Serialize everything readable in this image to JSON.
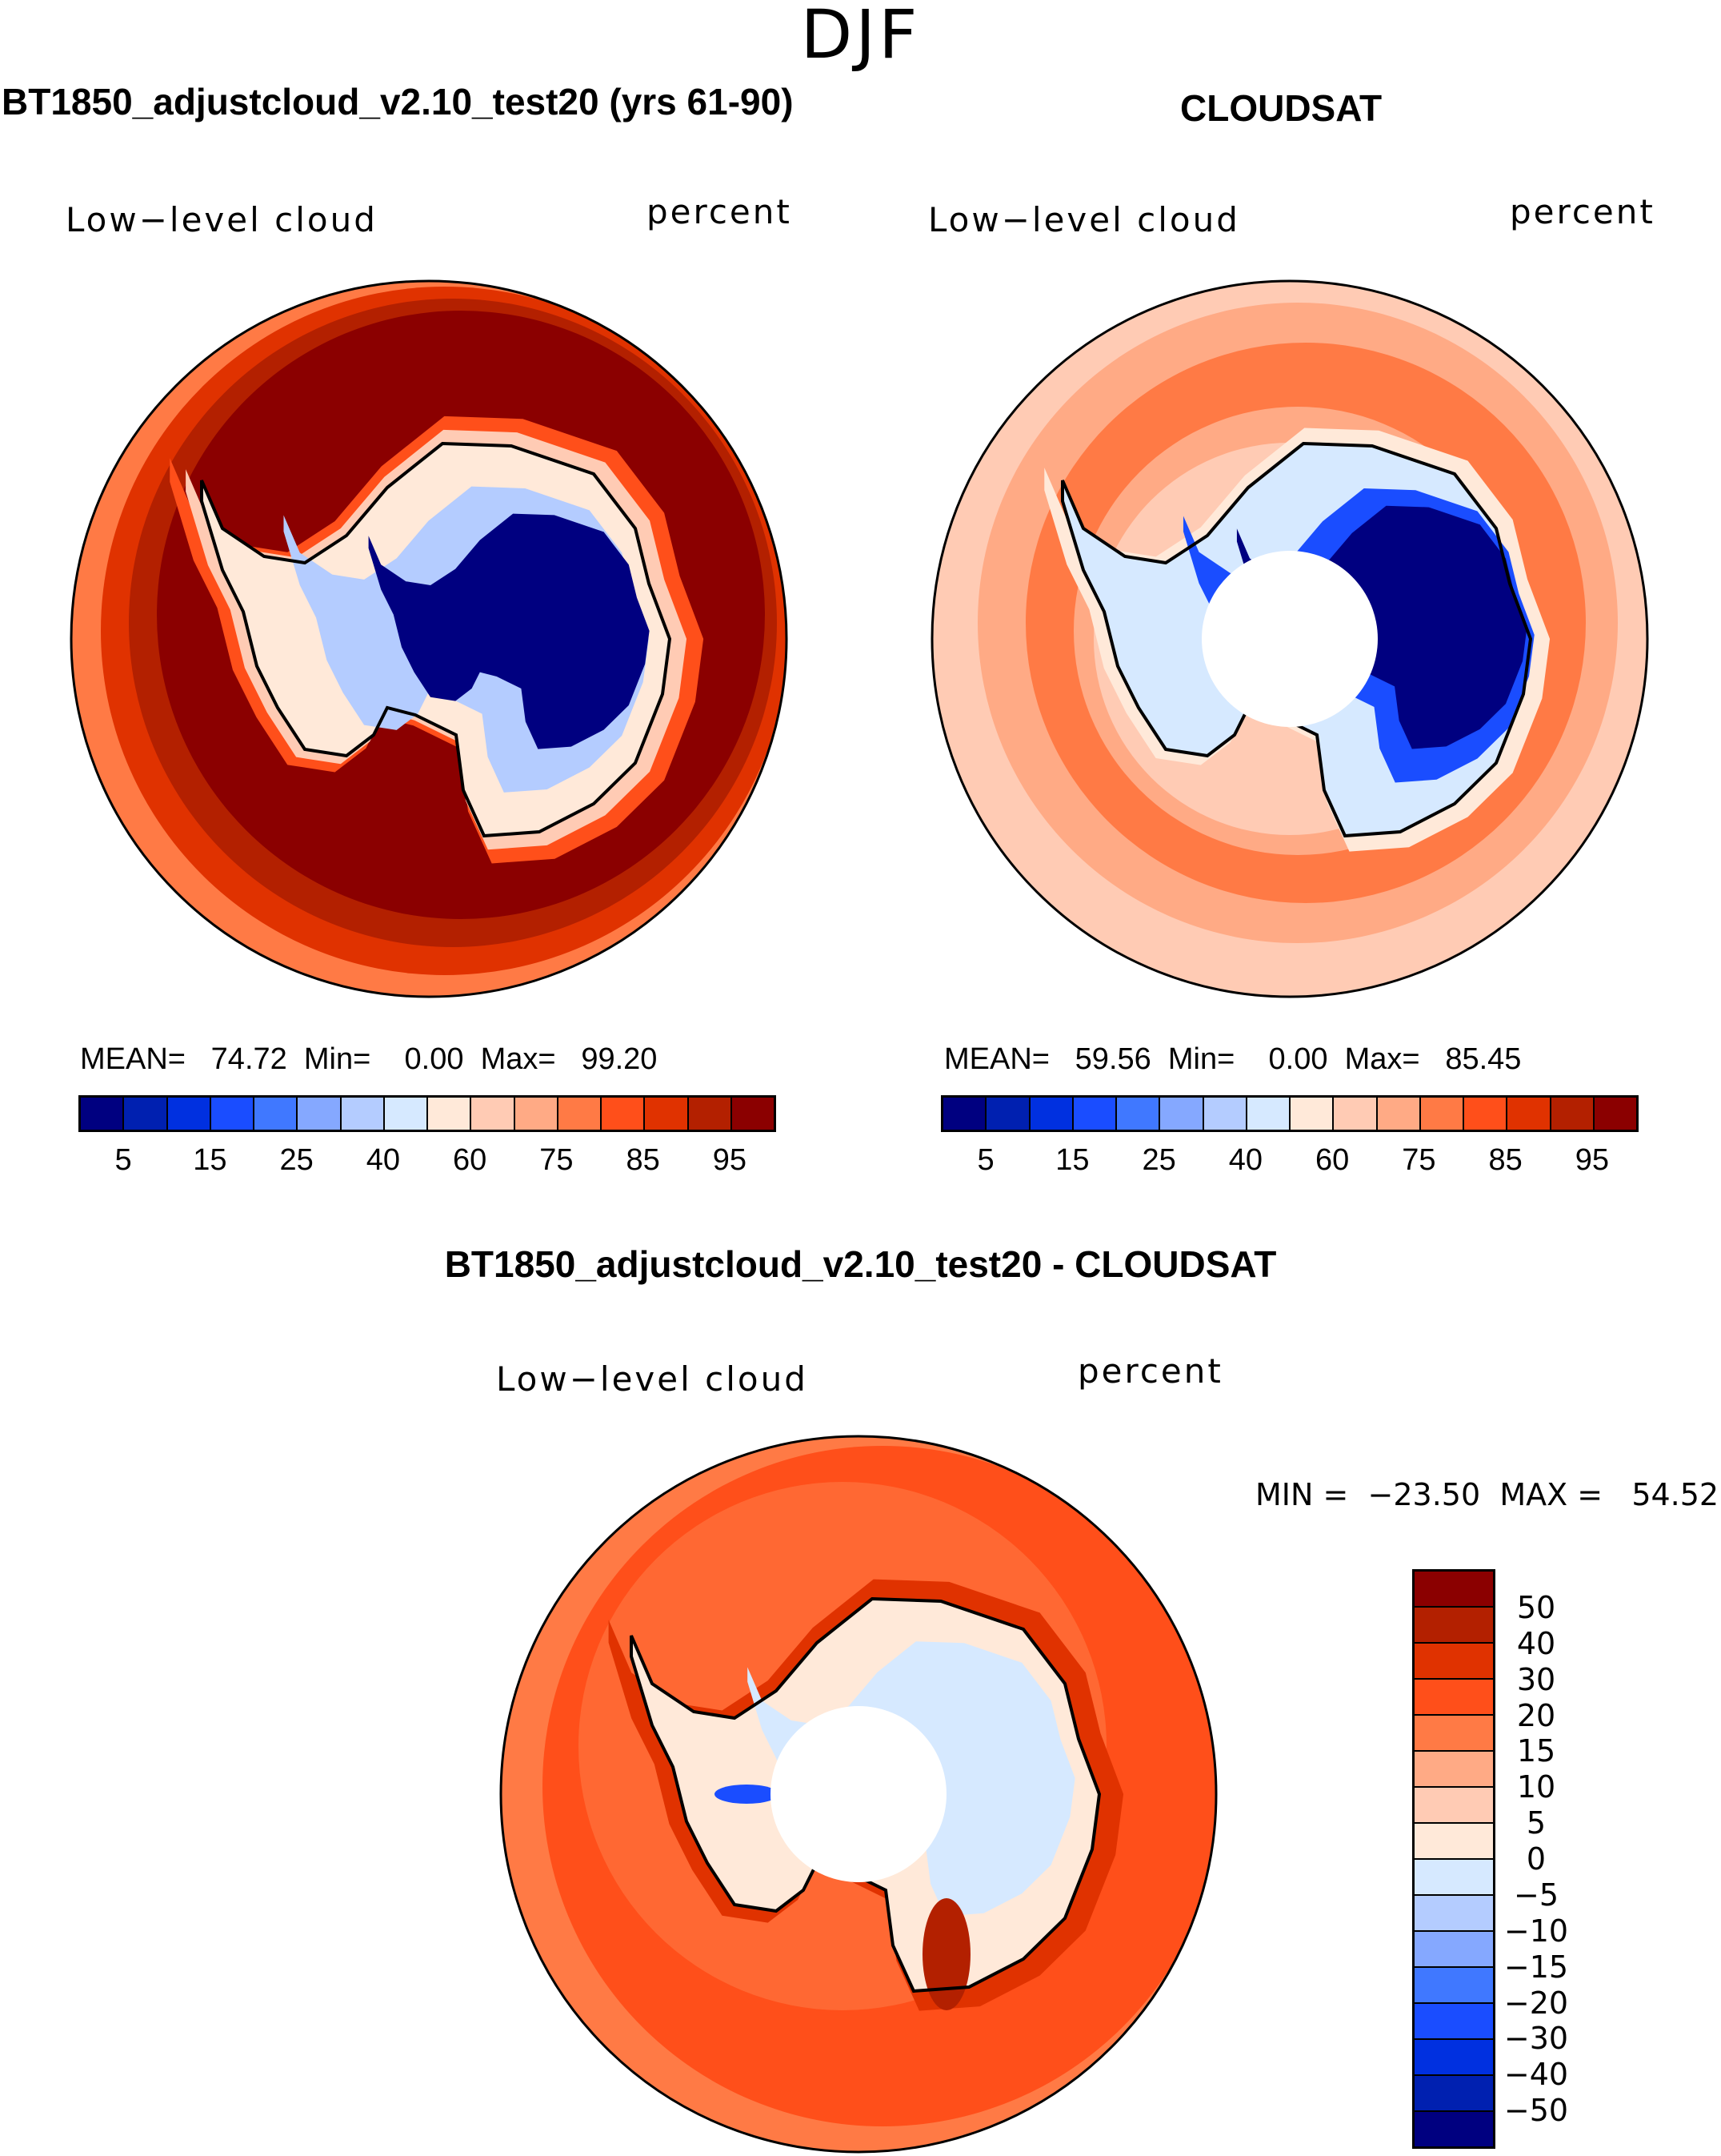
{
  "figure": {
    "title": "DJF"
  },
  "chart_data": [
    {
      "type": "heatmap",
      "projection": "south-polar-stereographic",
      "title": "BT1850_adjustcloud_v2.10_test20 (yrs 61-90)",
      "variable": "Low−level cloud",
      "units": "percent",
      "stats": {
        "mean_label": "MEAN=",
        "mean": "74.72",
        "min_label": "Min=",
        "min": "0.00",
        "max_label": "Max=",
        "max": "99.20"
      },
      "colorbar": {
        "orientation": "horizontal",
        "tick_labels": [
          "5",
          "15",
          "25",
          "40",
          "60",
          "75",
          "85",
          "95"
        ],
        "colors": [
          "#000080",
          "#0020b0",
          "#0030e0",
          "#1a4dff",
          "#4078ff",
          "#85a8ff",
          "#b4ccff",
          "#d6e9ff",
          "#ffe9d9",
          "#ffcbb4",
          "#ffaa85",
          "#ff7a45",
          "#ff4f1a",
          "#e03200",
          "#b32000",
          "#8b0000"
        ]
      }
    },
    {
      "type": "heatmap",
      "projection": "south-polar-stereographic",
      "title": "CLOUDSAT",
      "variable": "Low−level cloud",
      "units": "percent",
      "stats": {
        "mean_label": "MEAN=",
        "mean": "59.56",
        "min_label": "Min=",
        "min": "0.00",
        "max_label": "Max=",
        "max": "85.45"
      },
      "colorbar": {
        "orientation": "horizontal",
        "tick_labels": [
          "5",
          "15",
          "25",
          "40",
          "60",
          "75",
          "85",
          "95"
        ],
        "colors": [
          "#000080",
          "#0020b0",
          "#0030e0",
          "#1a4dff",
          "#4078ff",
          "#85a8ff",
          "#b4ccff",
          "#d6e9ff",
          "#ffe9d9",
          "#ffcbb4",
          "#ffaa85",
          "#ff7a45",
          "#ff4f1a",
          "#e03200",
          "#b32000",
          "#8b0000"
        ]
      }
    },
    {
      "type": "heatmap",
      "projection": "south-polar-stereographic",
      "title": "BT1850_adjustcloud_v2.10_test20 - CLOUDSAT",
      "variable": "Low−level cloud",
      "units": "percent",
      "stats": {
        "min_label": "MIN =",
        "min": "−23.50",
        "max_label": "MAX =",
        "max": "54.52"
      },
      "colorbar": {
        "orientation": "vertical",
        "tick_labels": [
          "50",
          "40",
          "30",
          "20",
          "15",
          "10",
          "5",
          "0",
          "−5",
          "−10",
          "−15",
          "−20",
          "−30",
          "−40",
          "−50"
        ],
        "colors": [
          "#8b0000",
          "#b32000",
          "#e03200",
          "#ff4f1a",
          "#ff7a45",
          "#ffaa85",
          "#ffcbb4",
          "#ffe9d9",
          "#d6e9ff",
          "#b4ccff",
          "#85a8ff",
          "#4078ff",
          "#1a4dff",
          "#0030e0",
          "#0020b0",
          "#000080"
        ]
      }
    }
  ]
}
